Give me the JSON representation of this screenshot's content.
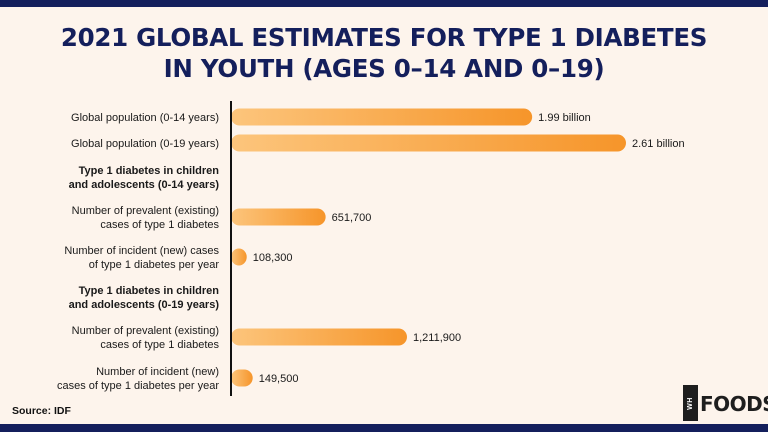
{
  "title_lines": [
    "2021 GLOBAL ESTIMATES FOR TYPE 1 DIABETES",
    "IN YOUTH (AGES 0–14 AND 0–19)"
  ],
  "source": "Source: IDF",
  "logo": {
    "box_text": "WH",
    "text": "FOODS"
  },
  "colors": {
    "navy": "#141f5c",
    "bar_start": "#fcc57c",
    "bar_end": "#f6952a",
    "background": "#fdf4ec"
  },
  "chart_data": {
    "type": "bar",
    "orientation": "horizontal",
    "rows": [
      {
        "label": [
          "Global population (0-14 years)"
        ],
        "value": 1990000000,
        "value_label": "1.99 billion",
        "group": "population"
      },
      {
        "label": [
          "Global population (0-19 years)"
        ],
        "value": 2610000000,
        "value_label": "2.61 billion",
        "group": "population"
      },
      {
        "heading": [
          "Type 1 diabetes in children",
          "and adolescents (0-14 years)"
        ]
      },
      {
        "label": [
          "Number of prevalent (existing)",
          "cases of type 1 diabetes"
        ],
        "value": 651700,
        "value_label": "651,700",
        "group": "cases"
      },
      {
        "label": [
          "Number of incident (new) cases",
          "of type 1 diabetes per year"
        ],
        "value": 108300,
        "value_label": "108,300",
        "group": "cases"
      },
      {
        "heading": [
          "Type 1 diabetes in children",
          "and adolescents (0-19 years)"
        ]
      },
      {
        "label": [
          "Number of prevalent (existing)",
          "cases of type 1 diabetes"
        ],
        "value": 1211900,
        "value_label": "1,211,900",
        "group": "cases"
      },
      {
        "label": [
          "Number of incident (new)",
          "cases of type 1 diabetes per year"
        ],
        "value": 149500,
        "value_label": "149,500",
        "group": "cases"
      }
    ]
  }
}
